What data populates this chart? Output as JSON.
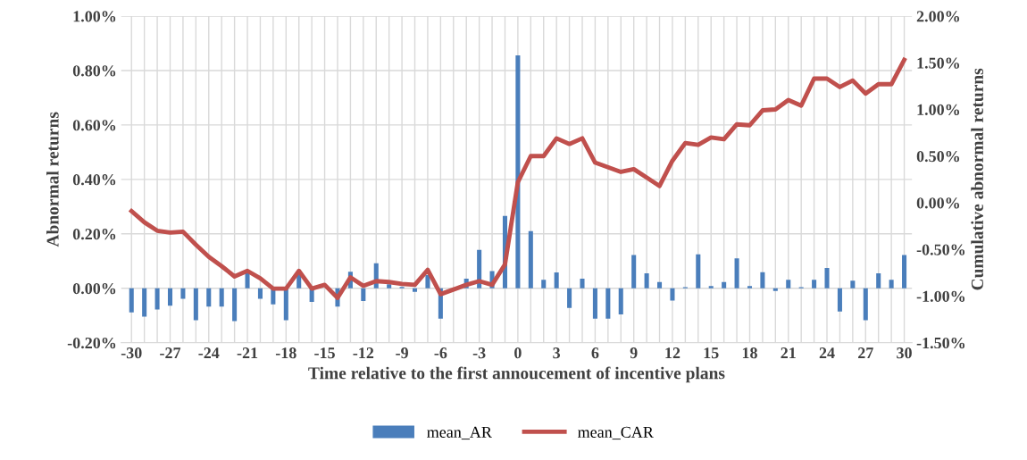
{
  "chart_data": {
    "type": "bar",
    "xlabel": "Time relative to the first annoucement of incentive plans",
    "ylabel": "Abnormal returns",
    "y2label": "Cumulative abnormal returns",
    "x": [
      -30,
      -29,
      -28,
      -27,
      -26,
      -25,
      -24,
      -23,
      -22,
      -21,
      -20,
      -19,
      -18,
      -17,
      -16,
      -15,
      -14,
      -13,
      -12,
      -11,
      -10,
      -9,
      -8,
      -7,
      -6,
      -5,
      -4,
      -3,
      -2,
      -1,
      0,
      1,
      2,
      3,
      4,
      5,
      6,
      7,
      8,
      9,
      10,
      11,
      12,
      13,
      14,
      15,
      16,
      17,
      18,
      19,
      20,
      21,
      22,
      23,
      24,
      25,
      26,
      27,
      28,
      29,
      30
    ],
    "series": [
      {
        "name": "mean_AR",
        "color": "#4a7ebb",
        "values": [
          -0.089,
          -0.104,
          -0.078,
          -0.064,
          -0.039,
          -0.117,
          -0.067,
          -0.067,
          -0.121,
          0.058,
          -0.039,
          -0.059,
          -0.117,
          0.055,
          -0.05,
          null,
          -0.067,
          0.061,
          -0.047,
          0.092,
          0.015,
          0.005,
          -0.013,
          0.048,
          -0.112,
          null,
          0.035,
          0.141,
          0.063,
          0.266,
          0.856,
          0.21,
          0.031,
          0.058,
          -0.072,
          0.035,
          -0.112,
          -0.112,
          -0.096,
          0.122,
          0.055,
          0.023,
          -0.045,
          0.004,
          0.125,
          0.008,
          0.023,
          0.11,
          0.008,
          0.059,
          -0.01,
          0.031,
          0.004,
          0.031,
          0.075,
          -0.085,
          0.028,
          -0.117,
          0.055,
          0.031,
          0.122
        ]
      },
      {
        "name": "mean_CAR",
        "type": "line",
        "axis": "y2",
        "color": "#c0504d",
        "values": [
          -0.09,
          -0.21,
          -0.3,
          -0.32,
          -0.31,
          -0.45,
          -0.58,
          -0.68,
          -0.79,
          -0.73,
          -0.81,
          -0.92,
          -0.92,
          -0.73,
          -0.92,
          -0.88,
          -1.02,
          -0.8,
          -0.89,
          -0.84,
          -0.85,
          -0.87,
          -0.88,
          -0.72,
          -0.98,
          -0.93,
          -0.88,
          -0.84,
          -0.88,
          -0.66,
          0.22,
          0.5,
          0.5,
          0.69,
          0.63,
          0.69,
          0.43,
          0.38,
          0.33,
          0.36,
          0.27,
          0.18,
          0.45,
          0.64,
          0.62,
          0.7,
          0.68,
          0.84,
          0.83,
          0.99,
          1.0,
          1.1,
          1.04,
          1.33,
          1.33,
          1.24,
          1.31,
          1.17,
          1.27,
          1.27,
          1.53
        ]
      }
    ],
    "xlim": [
      -30.8,
      30.6
    ],
    "xticks": [
      -30,
      {
        "value": -29,
        "label": null
      },
      {
        "value": -28,
        "label": null
      },
      -27,
      {
        "value": -26,
        "label": null
      },
      {
        "value": -25,
        "label": null
      },
      -24,
      {
        "value": -23,
        "label": null
      },
      {
        "value": -22,
        "label": null
      },
      -21,
      {
        "value": -20,
        "label": null
      },
      {
        "value": -19,
        "label": null
      },
      -18,
      {
        "value": -17,
        "label": null
      },
      {
        "value": -16,
        "label": null
      },
      -15,
      {
        "value": -14,
        "label": null
      },
      {
        "value": -13,
        "label": null
      },
      -12,
      {
        "value": -11,
        "label": null
      },
      {
        "value": -10,
        "label": null
      },
      -9,
      {
        "value": -8,
        "label": null
      },
      {
        "value": -7,
        "label": null
      },
      -6,
      {
        "value": -5,
        "label": null
      },
      {
        "value": -4,
        "label": null
      },
      -3,
      {
        "value": -2,
        "label": null
      },
      {
        "value": -1,
        "label": null
      },
      0,
      {
        "value": 1,
        "label": null
      },
      {
        "value": 2,
        "label": null
      },
      3,
      {
        "value": 4,
        "label": null
      },
      {
        "value": 5,
        "label": null
      },
      6,
      {
        "value": 7,
        "label": null
      },
      {
        "value": 8,
        "label": null
      },
      9,
      {
        "value": 10,
        "label": null
      },
      {
        "value": 11,
        "label": null
      },
      12,
      {
        "value": 13,
        "label": null
      },
      {
        "value": 14,
        "label": null
      },
      15,
      {
        "value": 16,
        "label": null
      },
      {
        "value": 17,
        "label": null
      },
      18,
      {
        "value": 19,
        "label": null
      },
      {
        "value": 20,
        "label": null
      },
      21,
      {
        "value": 22,
        "label": null
      },
      {
        "value": 23,
        "label": null
      },
      24,
      {
        "value": 25,
        "label": null
      },
      {
        "value": 26,
        "label": null
      },
      27,
      {
        "value": 28,
        "label": null
      },
      {
        "value": 29,
        "label": null
      },
      30
    ],
    "ylim": [
      -0.2,
      1.0
    ],
    "yticks": [
      {
        "value": -0.2,
        "label": "-0.20%"
      },
      {
        "value": 0,
        "label": "0.00%"
      },
      {
        "value": 0.2,
        "label": "0.20%"
      },
      {
        "value": 0.4,
        "label": "0.40%"
      },
      {
        "value": 0.6,
        "label": "0.60%"
      },
      {
        "value": 0.8,
        "label": "0.80%"
      },
      {
        "value": 1.0,
        "label": "1.00%"
      }
    ],
    "y2lim": [
      -1.5,
      2.0
    ],
    "y2ticks": [
      {
        "value": -1.5,
        "label": "-1.50%"
      },
      {
        "value": -1.0,
        "label": "-1.00%"
      },
      {
        "value": -0.5,
        "label": "-0.50%"
      },
      {
        "value": 0,
        "label": "0.00%"
      },
      {
        "value": 0.5,
        "label": "0.50%"
      },
      {
        "value": 1.0,
        "label": "1.00%"
      },
      {
        "value": 1.5,
        "label": "1.50%"
      },
      {
        "value": 2.0,
        "label": "2.00%"
      }
    ],
    "grid": true,
    "legend": "bottom"
  }
}
